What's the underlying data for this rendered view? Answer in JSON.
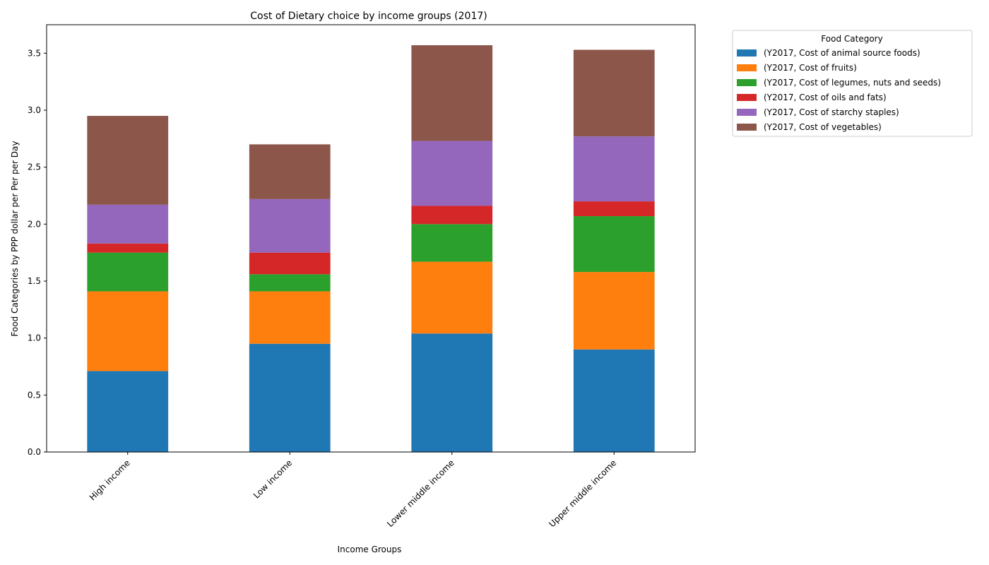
{
  "chart_data": {
    "type": "bar",
    "stacked": true,
    "title": "Cost of Dietary choice by income groups (2017)",
    "xlabel": "Income Groups",
    "ylabel": "Food Categories by PPP dollar per Per per Day",
    "ylim": [
      0,
      3.75
    ],
    "yticks": [
      0.0,
      0.5,
      1.0,
      1.5,
      2.0,
      2.5,
      3.0,
      3.5
    ],
    "ytick_labels": [
      "0.0",
      "0.5",
      "1.0",
      "1.5",
      "2.0",
      "2.5",
      "3.0",
      "3.5"
    ],
    "categories": [
      "High income",
      "Low income",
      "Lower middle income",
      "Upper middle income"
    ],
    "grid": false,
    "legend": {
      "title": "Food Category",
      "placement": "outside upper right"
    },
    "series": [
      {
        "name": "(Y2017, Cost of animal source foods)",
        "color": "#1f77b4",
        "values": [
          0.71,
          0.95,
          1.04,
          0.9
        ]
      },
      {
        "name": "(Y2017, Cost of fruits)",
        "color": "#ff7f0e",
        "values": [
          0.7,
          0.46,
          0.63,
          0.68
        ]
      },
      {
        "name": "(Y2017, Cost of legumes, nuts and seeds)",
        "color": "#2ca02c",
        "values": [
          0.34,
          0.15,
          0.33,
          0.49
        ]
      },
      {
        "name": "(Y2017, Cost of oils and fats)",
        "color": "#d62728",
        "values": [
          0.08,
          0.19,
          0.16,
          0.13
        ]
      },
      {
        "name": "(Y2017, Cost of starchy staples)",
        "color": "#9467bd",
        "values": [
          0.34,
          0.47,
          0.57,
          0.57
        ]
      },
      {
        "name": "(Y2017, Cost of vegetables)",
        "color": "#8c564b",
        "values": [
          0.78,
          0.48,
          0.84,
          0.76
        ]
      }
    ]
  }
}
